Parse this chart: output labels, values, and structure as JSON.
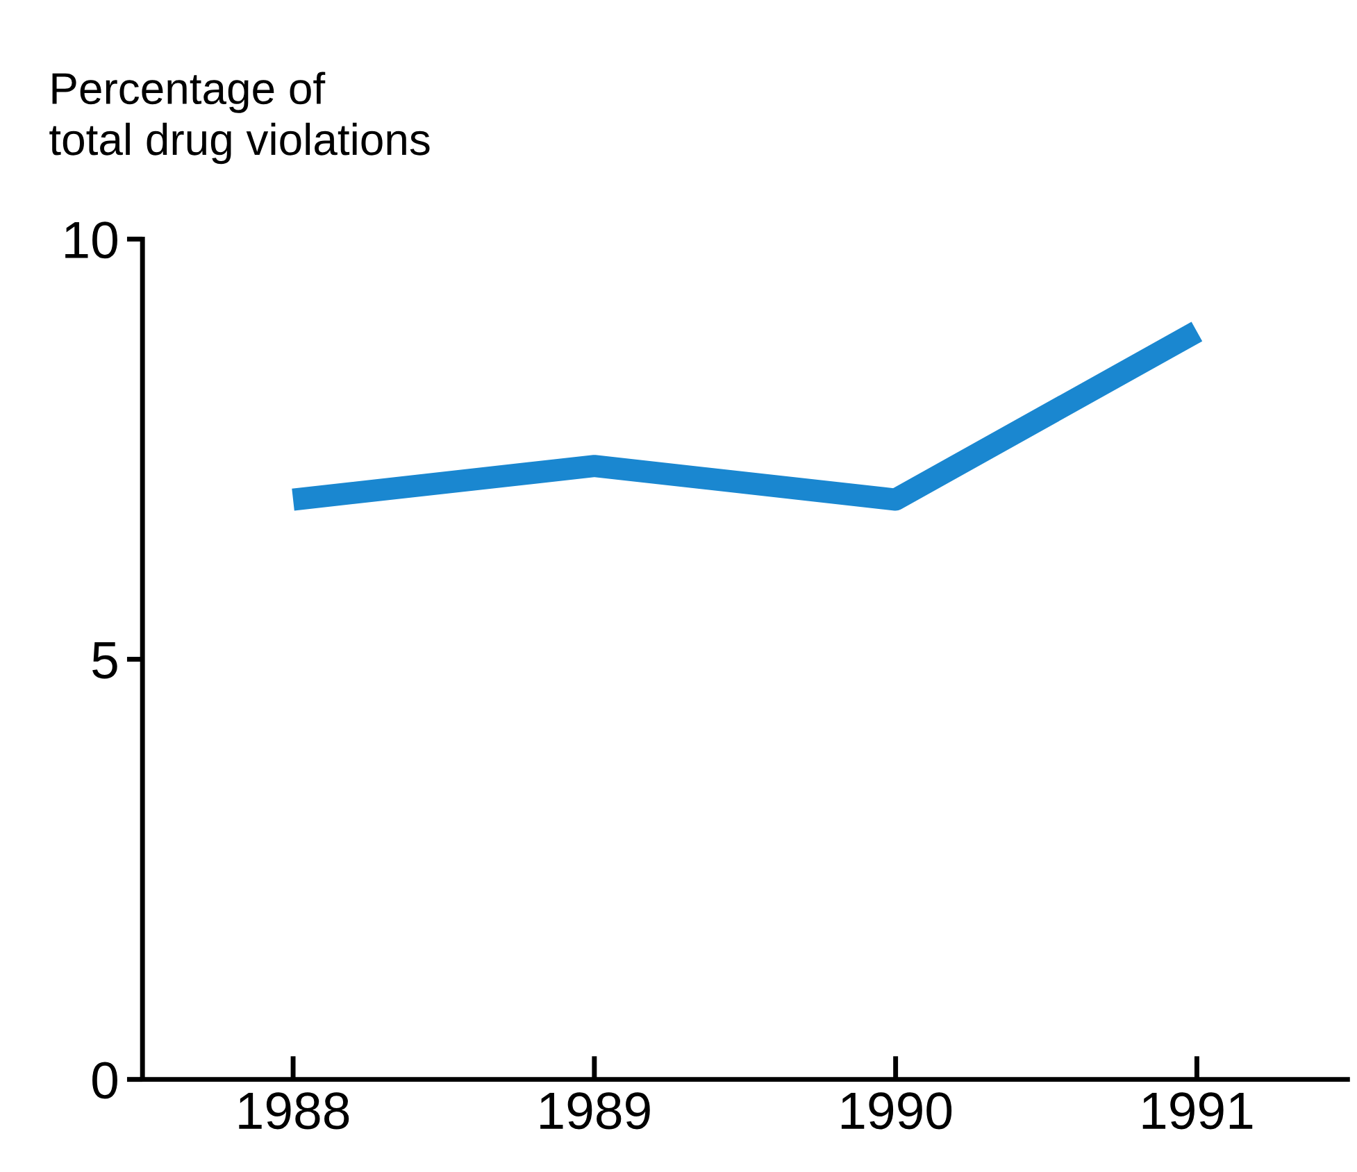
{
  "chart_data": {
    "type": "line",
    "ylabel": "Percentage of\ntotal drug violations",
    "x": [
      1988,
      1989,
      1990,
      1991
    ],
    "series": [
      {
        "color": "#1a87d0",
        "values": [
          6.9,
          7.3,
          6.9,
          8.9
        ]
      }
    ],
    "xlim": [
      1987.5,
      1991.5
    ],
    "xticks": [
      1988,
      1989,
      1990,
      1991
    ],
    "ylim": [
      0,
      10
    ],
    "yticks": [
      0,
      5,
      10
    ],
    "grid": false,
    "legend": false,
    "marker": "none",
    "line_style": "solid"
  }
}
